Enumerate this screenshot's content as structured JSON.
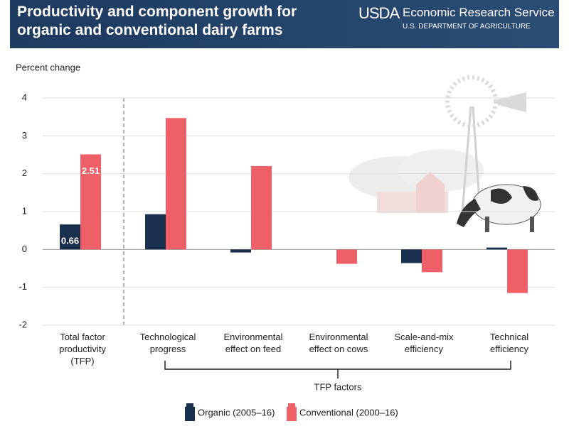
{
  "chart_data": {
    "type": "bar",
    "title": "Productivity and component growth for organic and conventional dairy farms",
    "source": {
      "logo": "USDA",
      "agency": "Economic Research Service",
      "department": "U.S. DEPARTMENT OF AGRICULTURE"
    },
    "y_label": "Percent change",
    "categories": [
      "Total factor\nproductivity\n(TFP)",
      "Technological\nprogress",
      "Environmental\neffect on feed",
      "Environmental\neffect on cows",
      "Scale-and-mix\nefficiency",
      "Technical\nefficiency"
    ],
    "group_label": "TFP factors",
    "series": [
      {
        "name": "Organic (2005–16)",
        "color": "#1b2f4e",
        "values": [
          0.66,
          0.93,
          -0.08,
          0,
          -0.36,
          0.05
        ]
      },
      {
        "name": "Conventional (2000–16)",
        "color": "#ef5f67",
        "values": [
          2.51,
          3.47,
          2.2,
          -0.38,
          -0.6,
          -1.15
        ]
      }
    ],
    "ylim": [
      -2,
      4
    ],
    "yticks": [
      -2,
      -1,
      0,
      1,
      2,
      3,
      4
    ],
    "grid": true
  }
}
